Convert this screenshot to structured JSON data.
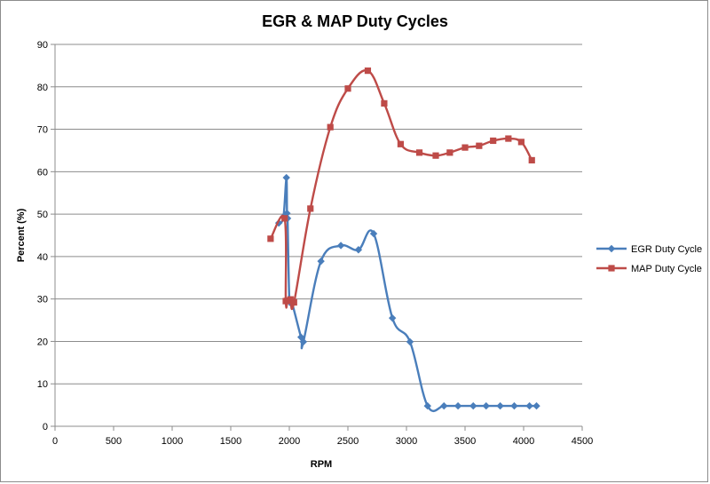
{
  "chart_data": {
    "type": "line",
    "title": "EGR & MAP Duty Cycles",
    "xlabel": "RPM",
    "ylabel": "Percent (%)",
    "xlim": [
      0,
      4500
    ],
    "ylim": [
      0,
      90
    ],
    "x_ticks": [
      0,
      500,
      1000,
      1500,
      2000,
      2500,
      3000,
      3500,
      4000,
      4500
    ],
    "y_ticks": [
      0,
      10,
      20,
      30,
      40,
      50,
      60,
      70,
      80,
      90
    ],
    "grid": "horizontal",
    "legend_position": "right",
    "series": [
      {
        "name": "EGR Duty Cycle",
        "color": "#4a7ebb",
        "marker": "diamond",
        "points": [
          [
            1910,
            47.9
          ],
          [
            1950,
            49.4
          ],
          [
            1975,
            58.6
          ],
          [
            1980,
            50.2
          ],
          [
            1985,
            49.0
          ],
          [
            2000,
            30.0
          ],
          [
            2020,
            29.4
          ],
          [
            2100,
            21.0
          ],
          [
            2120,
            19.9
          ],
          [
            2270,
            38.9
          ],
          [
            2440,
            42.6
          ],
          [
            2590,
            41.6
          ],
          [
            2720,
            45.4
          ],
          [
            2880,
            25.5
          ],
          [
            3030,
            19.9
          ],
          [
            3180,
            4.8
          ],
          [
            3320,
            4.8
          ],
          [
            3440,
            4.8
          ],
          [
            3570,
            4.8
          ],
          [
            3680,
            4.8
          ],
          [
            3800,
            4.8
          ],
          [
            3920,
            4.8
          ],
          [
            4050,
            4.8
          ],
          [
            4110,
            4.8
          ]
        ]
      },
      {
        "name": "MAP Duty Cycle",
        "color": "#be4b48",
        "marker": "square",
        "points": [
          [
            1840,
            44.2
          ],
          [
            1960,
            49.0
          ],
          [
            1970,
            29.5
          ],
          [
            1985,
            29.6
          ],
          [
            2010,
            29.9
          ],
          [
            2040,
            29.2
          ],
          [
            2180,
            51.3
          ],
          [
            2350,
            70.5
          ],
          [
            2500,
            79.6
          ],
          [
            2670,
            83.8
          ],
          [
            2810,
            76.1
          ],
          [
            2950,
            66.5
          ],
          [
            3110,
            64.5
          ],
          [
            3250,
            63.8
          ],
          [
            3370,
            64.5
          ],
          [
            3500,
            65.7
          ],
          [
            3620,
            66.1
          ],
          [
            3740,
            67.3
          ],
          [
            3870,
            67.8
          ],
          [
            3980,
            67.0
          ],
          [
            4070,
            62.7
          ]
        ]
      }
    ]
  }
}
